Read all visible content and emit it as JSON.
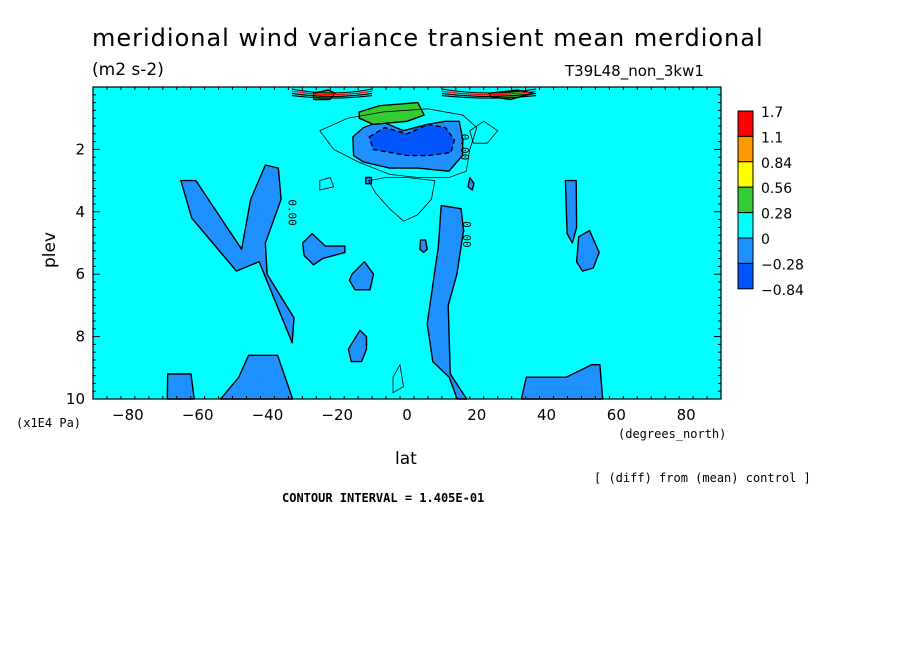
{
  "chart_data": {
    "type": "heatmap",
    "title": "meridional wind variance transient mean merdional",
    "units": "(m2 s-2)",
    "run_label": "T39L48_non_3kw1",
    "xlabel": "lat",
    "xunits": "(degrees_north)",
    "ylabel": "plev",
    "yunits": "(x1E4 Pa)",
    "xlim": [
      -90,
      90
    ],
    "ylim": [
      10,
      0
    ],
    "x_ticks": [
      -80,
      -60,
      -40,
      -20,
      0,
      20,
      40,
      60,
      80
    ],
    "x_tick_labels": [
      "−80",
      "−60",
      "−40",
      "−20",
      "0",
      "20",
      "40",
      "60",
      "80"
    ],
    "y_ticks": [
      2,
      4,
      6,
      8,
      10
    ],
    "y_tick_labels": [
      "2",
      "4",
      "6",
      "8",
      "10"
    ],
    "colorbar": {
      "levels": [
        "1.7",
        "1.1",
        "0.84",
        "0.56",
        "0.28",
        "0",
        "−0.28",
        "−0.84"
      ],
      "colors": [
        "#ff0000",
        "#ff9900",
        "#ffff00",
        "#33cc33",
        "#00ffff",
        "#1e90ff",
        "#0055ff"
      ],
      "background": "#00ffff"
    },
    "contour_labels": [
      "0.00",
      "0.00",
      "0.00",
      "0.00"
    ],
    "note": "[ (diff) from (mean) control ]",
    "contour_interval": "CONTOUR INTERVAL = 1.405E-01",
    "regions": [
      {
        "name": "neg-sh-mid",
        "level": -0.28,
        "pts": [
          [
            -64.8,
            3.0
          ],
          [
            -60.5,
            3.0
          ],
          [
            -47.4,
            5.2
          ],
          [
            -44.8,
            3.6
          ],
          [
            -40.6,
            2.5
          ],
          [
            -36.9,
            2.6
          ],
          [
            -36.1,
            3.6
          ],
          [
            -40.6,
            5.0
          ],
          [
            -40.1,
            6.0
          ],
          [
            -32.4,
            7.4
          ],
          [
            -32.9,
            8.2
          ],
          [
            -42.4,
            5.6
          ],
          [
            -48.9,
            5.9
          ],
          [
            -61.7,
            4.2
          ]
        ]
      },
      {
        "name": "neg-sh-bottom",
        "level": -0.28,
        "pts": [
          [
            -53.4,
            10.0
          ],
          [
            -48.2,
            9.3
          ],
          [
            -45.4,
            8.6
          ],
          [
            -37.1,
            8.6
          ],
          [
            -33.7,
            9.7
          ],
          [
            -32.8,
            10.0
          ]
        ]
      },
      {
        "name": "neg-sh-bottom2",
        "level": -0.28,
        "pts": [
          [
            -68.7,
            10.0
          ],
          [
            -68.6,
            9.2
          ],
          [
            -61.9,
            9.2
          ],
          [
            -61.0,
            10.0
          ]
        ]
      },
      {
        "name": "neg-eq",
        "level": -0.28,
        "pts": [
          [
            -15.5,
            1.6
          ],
          [
            -12.5,
            1.3
          ],
          [
            -7.5,
            1.1
          ],
          [
            -1.0,
            1.4
          ],
          [
            5.8,
            1.2
          ],
          [
            10.9,
            1.1
          ],
          [
            15.0,
            1.1
          ],
          [
            16.0,
            1.7
          ],
          [
            15.9,
            2.2
          ],
          [
            12.0,
            2.7
          ],
          [
            3.0,
            2.6
          ],
          [
            -5.0,
            2.6
          ],
          [
            -12.5,
            2.4
          ],
          [
            -15.3,
            2.2
          ]
        ]
      },
      {
        "name": "neg-eq-core",
        "level": -0.84,
        "pts": [
          [
            -10.8,
            1.6
          ],
          [
            -6.4,
            1.3
          ],
          [
            0.0,
            1.5
          ],
          [
            6.0,
            1.2
          ],
          [
            11.0,
            1.3
          ],
          [
            13.6,
            1.7
          ],
          [
            12.6,
            2.1
          ],
          [
            6.0,
            2.2
          ],
          [
            0.2,
            2.2
          ],
          [
            -9.7,
            2.0
          ]
        ]
      },
      {
        "name": "neg-nh-tongue",
        "level": -0.28,
        "pts": [
          [
            9.8,
            3.8
          ],
          [
            15.5,
            3.9
          ],
          [
            16.2,
            4.6
          ],
          [
            14.3,
            6.0
          ],
          [
            11.8,
            7.0
          ],
          [
            12.4,
            9.2
          ],
          [
            17.1,
            10.0
          ],
          [
            14.4,
            10.0
          ],
          [
            12.1,
            9.3
          ],
          [
            7.4,
            8.8
          ],
          [
            5.8,
            7.6
          ],
          [
            9.0,
            5.1
          ]
        ]
      },
      {
        "name": "neg-nh-bottom",
        "level": -0.28,
        "pts": [
          [
            32.8,
            10.0
          ],
          [
            34.2,
            9.3
          ],
          [
            45.6,
            9.3
          ],
          [
            52.9,
            8.9
          ],
          [
            55.3,
            8.9
          ],
          [
            56.1,
            10.0
          ]
        ]
      },
      {
        "name": "neg-nh-column",
        "level": -0.28,
        "pts": [
          [
            45.4,
            3.0
          ],
          [
            48.5,
            3.0
          ],
          [
            48.6,
            4.5
          ],
          [
            47.4,
            5.0
          ],
          [
            45.9,
            4.7
          ]
        ]
      },
      {
        "name": "neg-nh-blob",
        "level": -0.28,
        "pts": [
          [
            49.2,
            4.8
          ],
          [
            52.3,
            4.6
          ],
          [
            55.1,
            5.3
          ],
          [
            53.4,
            5.8
          ],
          [
            50.3,
            5.9
          ],
          [
            48.6,
            5.6
          ]
        ]
      },
      {
        "name": "neg-blob-a",
        "level": -0.28,
        "pts": [
          [
            -29.9,
            5.0
          ],
          [
            -27.2,
            4.7
          ],
          [
            -23.4,
            5.1
          ],
          [
            -17.8,
            5.1
          ],
          [
            -17.8,
            5.3
          ],
          [
            -24.2,
            5.5
          ],
          [
            -26.8,
            5.7
          ],
          [
            -29.5,
            5.4
          ]
        ]
      },
      {
        "name": "neg-blob-b",
        "level": -0.28,
        "pts": [
          [
            -15.8,
            6.0
          ],
          [
            -12.2,
            5.6
          ],
          [
            -9.6,
            6.0
          ],
          [
            -10.6,
            6.5
          ],
          [
            -14.9,
            6.5
          ],
          [
            -16.5,
            6.2
          ]
        ]
      },
      {
        "name": "neg-blob-c",
        "level": -0.28,
        "pts": [
          [
            -16.8,
            8.4
          ],
          [
            -13.5,
            7.8
          ],
          [
            -11.6,
            8.0
          ],
          [
            -11.6,
            8.4
          ],
          [
            -13.0,
            8.8
          ],
          [
            -16.0,
            8.8
          ]
        ]
      },
      {
        "name": "neg-blob-d",
        "level": -0.28,
        "pts": [
          [
            3.9,
            4.9
          ],
          [
            5.3,
            4.9
          ],
          [
            5.8,
            5.2
          ],
          [
            4.8,
            5.3
          ],
          [
            3.7,
            5.2
          ]
        ]
      },
      {
        "name": "neg-blob-e",
        "level": -0.28,
        "pts": [
          [
            -11.8,
            2.9
          ],
          [
            -10.2,
            2.9
          ],
          [
            -10.2,
            3.1
          ],
          [
            -11.8,
            3.1
          ]
        ]
      },
      {
        "name": "neg-blob-f",
        "level": -0.28,
        "pts": [
          [
            18.0,
            2.9
          ],
          [
            19.2,
            3.1
          ],
          [
            18.7,
            3.3
          ],
          [
            17.5,
            3.2
          ]
        ]
      },
      {
        "name": "pos-green-left",
        "level": 0.28,
        "pts": [
          [
            -26.8,
            0.2
          ],
          [
            -22.6,
            0.1
          ],
          [
            -20.6,
            0.2
          ],
          [
            -22.1,
            0.4
          ],
          [
            -26.7,
            0.4
          ]
        ]
      },
      {
        "name": "pos-green-mid",
        "level": 0.28,
        "pts": [
          [
            -13.7,
            0.8
          ],
          [
            -7.8,
            0.6
          ],
          [
            3.1,
            0.5
          ],
          [
            4.9,
            0.9
          ],
          [
            0.0,
            1.1
          ],
          [
            -9.7,
            1.2
          ],
          [
            -13.7,
            1.0
          ]
        ]
      },
      {
        "name": "pos-green-right",
        "level": 0.28,
        "pts": [
          [
            23.5,
            0.2
          ],
          [
            31.7,
            0.1
          ],
          [
            36.2,
            0.2
          ],
          [
            29.7,
            0.4
          ],
          [
            23.9,
            0.3
          ]
        ]
      }
    ]
  }
}
